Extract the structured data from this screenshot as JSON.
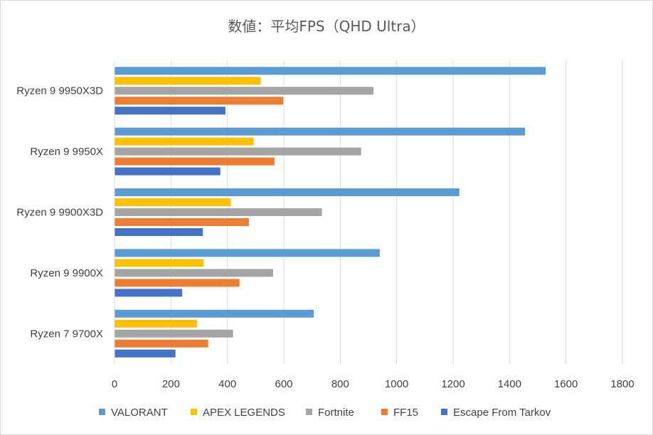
{
  "chart_data": {
    "type": "bar",
    "orientation": "horizontal",
    "title": "数値：平均FPS（QHD Ultra）",
    "categories": [
      "Ryzen 9 9950X3D",
      "Ryzen 9 9950X",
      "Ryzen 9 9900X3D",
      "Ryzen 9 9900X",
      "Ryzen 7 9700X"
    ],
    "series": [
      {
        "name": "VALORANT",
        "color": "#5b9bd5",
        "values": [
          1528,
          1455,
          1222,
          940,
          706
        ]
      },
      {
        "name": "APEX LEGENDS",
        "color": "#ffc000",
        "values": [
          518,
          493,
          412,
          316,
          292
        ]
      },
      {
        "name": "Fortnite",
        "color": "#a5a5a5",
        "values": [
          918,
          874,
          735,
          562,
          420
        ]
      },
      {
        "name": "FF15",
        "color": "#ed7d31",
        "values": [
          598,
          567,
          476,
          443,
          332
        ]
      },
      {
        "name": "Escape From Tarkov",
        "color": "#4472c4",
        "values": [
          393,
          375,
          313,
          240,
          216
        ]
      }
    ],
    "xlim": [
      0,
      1800
    ],
    "x_ticks": [
      "0",
      "200",
      "400",
      "600",
      "800",
      "1000",
      "1200",
      "1400",
      "1600",
      "1800"
    ],
    "grid": true,
    "legend_position": "bottom"
  }
}
